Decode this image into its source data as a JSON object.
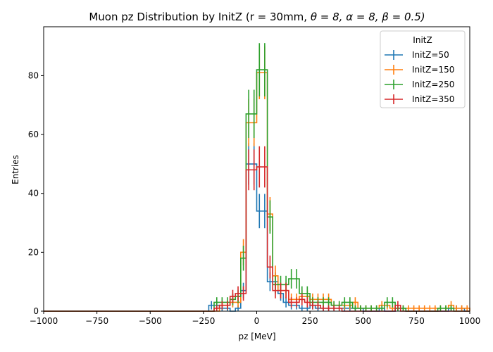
{
  "chart_data": {
    "type": "histogram",
    "title": "Muon pz Distribution by InitZ (r = 30mm, θ = 8, α = 8, β = 0.5)",
    "title_prefix": "Muon pz Distribution by InitZ (r = 30mm, ",
    "title_math": "θ = 8, α = 8, β = 0.5)",
    "xlabel": "pz [MeV]",
    "ylabel": "Entries",
    "xlim": [
      -1000,
      1000
    ],
    "ylim": [
      0,
      96.6
    ],
    "xticks": [
      -1000,
      -750,
      -500,
      -250,
      0,
      250,
      500,
      750,
      1000
    ],
    "yticks": [
      0,
      20,
      40,
      60,
      80
    ],
    "bin_width": 25,
    "legend_title": "InitZ",
    "legend_position": "upper right",
    "series": [
      {
        "name": "InitZ=50",
        "color": "#1f77b4",
        "bins": [
          [
            -225,
            2
          ],
          [
            -200,
            2
          ],
          [
            -175,
            1
          ],
          [
            -150,
            1
          ],
          [
            -125,
            0
          ],
          [
            -100,
            1
          ],
          [
            -75,
            7
          ],
          [
            -50,
            50
          ],
          [
            -25,
            50
          ],
          [
            0,
            34
          ],
          [
            25,
            34
          ],
          [
            50,
            10
          ],
          [
            75,
            10
          ],
          [
            100,
            6
          ],
          [
            125,
            3
          ],
          [
            150,
            2
          ],
          [
            175,
            2
          ],
          [
            200,
            1
          ],
          [
            225,
            1
          ],
          [
            250,
            2
          ],
          [
            275,
            1
          ],
          [
            300,
            1
          ],
          [
            325,
            1
          ],
          [
            350,
            1
          ],
          [
            375,
            1
          ],
          [
            400,
            1
          ],
          [
            425,
            1
          ],
          [
            450,
            1
          ],
          [
            475,
            1
          ],
          [
            500,
            0
          ],
          [
            525,
            0
          ],
          [
            550,
            0
          ],
          [
            575,
            1
          ],
          [
            600,
            0
          ],
          [
            625,
            0
          ],
          [
            650,
            1
          ],
          [
            675,
            1
          ],
          [
            700,
            0
          ],
          [
            725,
            0
          ],
          [
            750,
            0
          ],
          [
            775,
            0
          ],
          [
            800,
            0
          ],
          [
            825,
            0
          ],
          [
            850,
            0
          ],
          [
            875,
            0
          ],
          [
            900,
            1
          ],
          [
            925,
            1
          ],
          [
            950,
            1
          ],
          [
            975,
            0
          ]
        ]
      },
      {
        "name": "InitZ=150",
        "color": "#ff7f0e",
        "bins": [
          [
            -225,
            0
          ],
          [
            -200,
            0
          ],
          [
            -175,
            2
          ],
          [
            -150,
            2
          ],
          [
            -125,
            3
          ],
          [
            -100,
            3
          ],
          [
            -75,
            20
          ],
          [
            -50,
            64
          ],
          [
            -25,
            64
          ],
          [
            0,
            81
          ],
          [
            25,
            81
          ],
          [
            50,
            33
          ],
          [
            75,
            12
          ],
          [
            100,
            7
          ],
          [
            125,
            7
          ],
          [
            150,
            4
          ],
          [
            175,
            4
          ],
          [
            200,
            5
          ],
          [
            225,
            5
          ],
          [
            250,
            4
          ],
          [
            275,
            4
          ],
          [
            300,
            4
          ],
          [
            325,
            4
          ],
          [
            350,
            2
          ],
          [
            375,
            2
          ],
          [
            400,
            2
          ],
          [
            425,
            2
          ],
          [
            450,
            3
          ],
          [
            475,
            1
          ],
          [
            500,
            1
          ],
          [
            525,
            1
          ],
          [
            550,
            1
          ],
          [
            575,
            2
          ],
          [
            600,
            2
          ],
          [
            625,
            1
          ],
          [
            650,
            1
          ],
          [
            675,
            1
          ],
          [
            700,
            1
          ],
          [
            725,
            1
          ],
          [
            750,
            1
          ],
          [
            775,
            1
          ],
          [
            800,
            1
          ],
          [
            825,
            1
          ],
          [
            850,
            1
          ],
          [
            875,
            1
          ],
          [
            900,
            2
          ],
          [
            925,
            1
          ],
          [
            950,
            1
          ],
          [
            975,
            1
          ]
        ]
      },
      {
        "name": "InitZ=250",
        "color": "#2ca02c",
        "bins": [
          [
            -225,
            0
          ],
          [
            -200,
            3
          ],
          [
            -175,
            3
          ],
          [
            -150,
            3
          ],
          [
            -125,
            4
          ],
          [
            -100,
            5
          ],
          [
            -75,
            18
          ],
          [
            -50,
            67
          ],
          [
            -25,
            67
          ],
          [
            0,
            82
          ],
          [
            25,
            82
          ],
          [
            50,
            32
          ],
          [
            75,
            9
          ],
          [
            100,
            9
          ],
          [
            125,
            9
          ],
          [
            150,
            11
          ],
          [
            175,
            11
          ],
          [
            200,
            6
          ],
          [
            225,
            6
          ],
          [
            250,
            3
          ],
          [
            275,
            3
          ],
          [
            300,
            3
          ],
          [
            325,
            3
          ],
          [
            350,
            2
          ],
          [
            375,
            2
          ],
          [
            400,
            3
          ],
          [
            425,
            3
          ],
          [
            450,
            1
          ],
          [
            475,
            1
          ],
          [
            500,
            1
          ],
          [
            525,
            1
          ],
          [
            550,
            1
          ],
          [
            575,
            1
          ],
          [
            600,
            3
          ],
          [
            625,
            3
          ],
          [
            650,
            1
          ],
          [
            675,
            1
          ],
          [
            700,
            0
          ],
          [
            725,
            0
          ],
          [
            750,
            0
          ],
          [
            775,
            0
          ],
          [
            800,
            0
          ],
          [
            825,
            0
          ],
          [
            850,
            1
          ],
          [
            875,
            1
          ],
          [
            900,
            1
          ],
          [
            925,
            0
          ],
          [
            950,
            0
          ],
          [
            975,
            0
          ]
        ]
      },
      {
        "name": "InitZ=350",
        "color": "#d62728",
        "bins": [
          [
            -225,
            0
          ],
          [
            -200,
            1
          ],
          [
            -175,
            2
          ],
          [
            -150,
            2
          ],
          [
            -125,
            5
          ],
          [
            -100,
            6
          ],
          [
            -75,
            6
          ],
          [
            -50,
            48
          ],
          [
            -25,
            48
          ],
          [
            0,
            49
          ],
          [
            25,
            49
          ],
          [
            50,
            15
          ],
          [
            75,
            7
          ],
          [
            100,
            7
          ],
          [
            125,
            7
          ],
          [
            150,
            3
          ],
          [
            175,
            3
          ],
          [
            200,
            4
          ],
          [
            225,
            3
          ],
          [
            250,
            2
          ],
          [
            275,
            2
          ],
          [
            300,
            1
          ],
          [
            325,
            1
          ],
          [
            350,
            1
          ],
          [
            375,
            1
          ],
          [
            400,
            0
          ],
          [
            425,
            0
          ],
          [
            450,
            0
          ],
          [
            475,
            0
          ],
          [
            500,
            0
          ],
          [
            525,
            0
          ],
          [
            550,
            0
          ],
          [
            575,
            0
          ],
          [
            600,
            0
          ],
          [
            625,
            0
          ],
          [
            650,
            2
          ],
          [
            675,
            0
          ],
          [
            700,
            0
          ],
          [
            725,
            0
          ],
          [
            750,
            0
          ],
          [
            775,
            0
          ],
          [
            800,
            0
          ],
          [
            825,
            0
          ],
          [
            850,
            0
          ],
          [
            875,
            0
          ],
          [
            900,
            0
          ],
          [
            925,
            0
          ],
          [
            950,
            0
          ],
          [
            975,
            0
          ]
        ]
      }
    ]
  }
}
